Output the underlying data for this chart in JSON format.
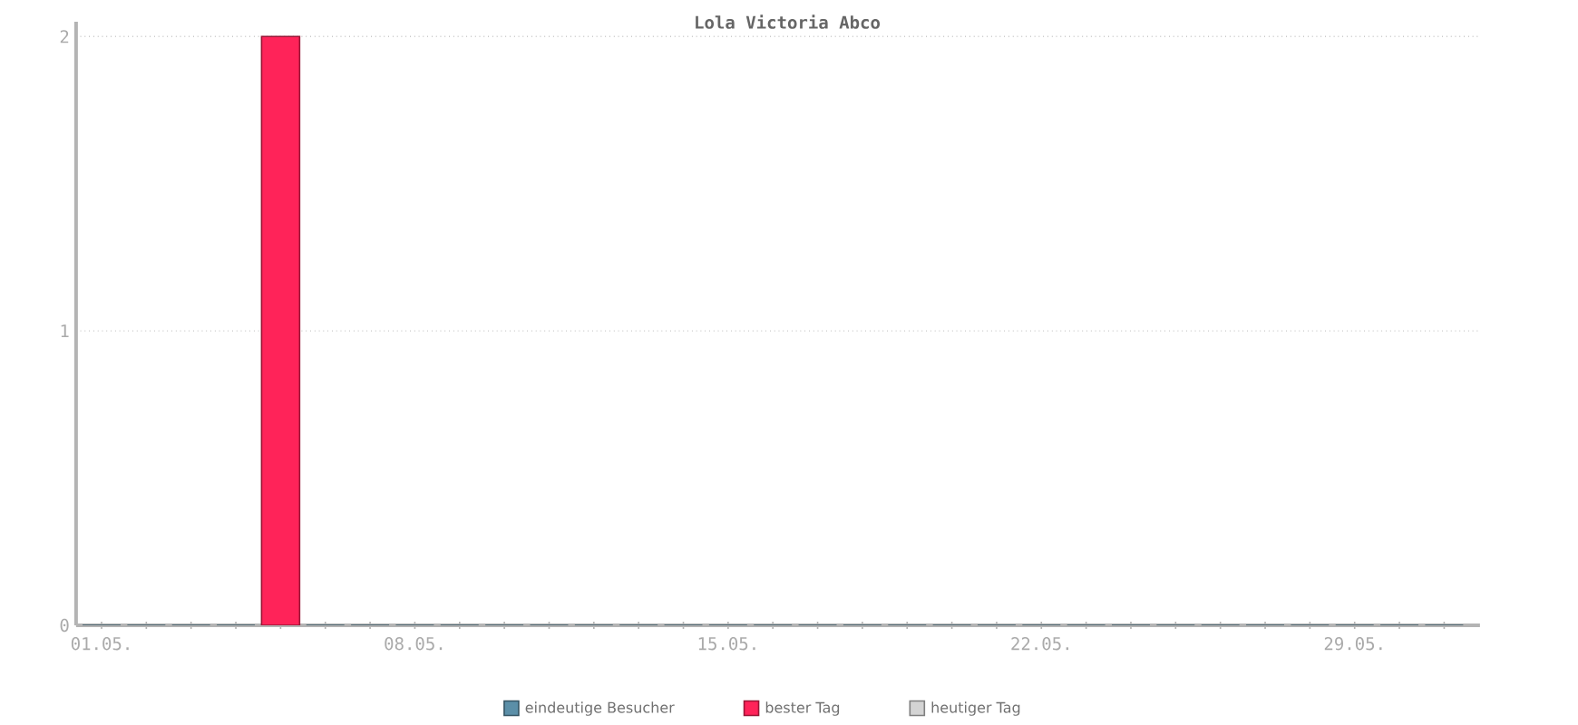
{
  "chart_data": {
    "type": "bar",
    "title": "Lola Victoria Abco",
    "categories": [
      "01.05.",
      null,
      null,
      null,
      null,
      null,
      null,
      "08.05.",
      null,
      null,
      null,
      null,
      null,
      null,
      "15.05.",
      null,
      null,
      null,
      null,
      null,
      null,
      "22.05.",
      null,
      null,
      null,
      null,
      null,
      null,
      "29.05.",
      null,
      null
    ],
    "series": [
      {
        "name": "eindeutige Besucher",
        "color": "#5b8fa8",
        "values": [
          0,
          0,
          0,
          0,
          null,
          0,
          0,
          0,
          0,
          0,
          0,
          0,
          0,
          0,
          0,
          0,
          0,
          0,
          0,
          0,
          0,
          0,
          0,
          0,
          0,
          0,
          0,
          0,
          0,
          0,
          0
        ]
      },
      {
        "name": "bester Tag",
        "color": "#ff2359",
        "values": [
          null,
          null,
          null,
          null,
          2,
          null,
          null,
          null,
          null,
          null,
          null,
          null,
          null,
          null,
          null,
          null,
          null,
          null,
          null,
          null,
          null,
          null,
          null,
          null,
          null,
          null,
          null,
          null,
          null,
          null,
          null
        ]
      },
      {
        "name": "heutiger Tag",
        "color": "#d4d4d4",
        "values": [
          null,
          null,
          null,
          null,
          null,
          null,
          null,
          null,
          null,
          null,
          null,
          null,
          null,
          null,
          null,
          null,
          null,
          null,
          null,
          null,
          null,
          null,
          null,
          null,
          null,
          null,
          null,
          null,
          null,
          null,
          null
        ]
      }
    ],
    "ylim": [
      0,
      2.05
    ],
    "yticks": [
      0,
      1,
      2
    ],
    "grid": "y",
    "legend": "bottom"
  }
}
